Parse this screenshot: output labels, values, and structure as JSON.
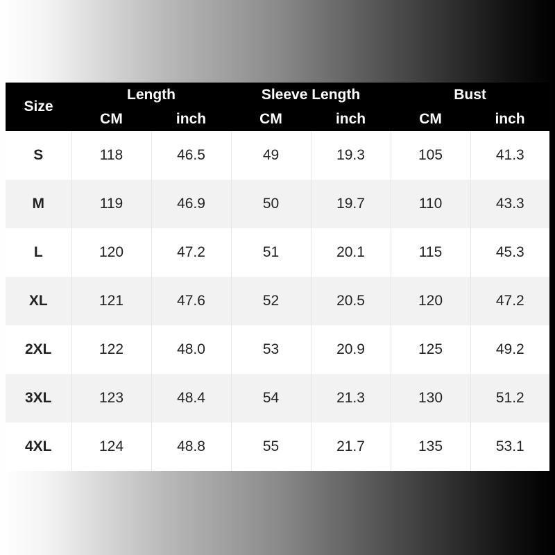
{
  "table": {
    "size_header": "Size",
    "groups": [
      "Length",
      "Sleeve Length",
      "Bust"
    ],
    "units": [
      "CM",
      "inch",
      "CM",
      "inch",
      "CM",
      "inch"
    ],
    "rows": [
      [
        "S",
        "118",
        "46.5",
        "49",
        "19.3",
        "105",
        "41.3"
      ],
      [
        "M",
        "119",
        "46.9",
        "50",
        "19.7",
        "110",
        "43.3"
      ],
      [
        "L",
        "120",
        "47.2",
        "51",
        "20.1",
        "115",
        "45.3"
      ],
      [
        "XL",
        "121",
        "47.6",
        "52",
        "20.5",
        "120",
        "47.2"
      ],
      [
        "2XL",
        "122",
        "48.0",
        "53",
        "20.9",
        "125",
        "49.2"
      ],
      [
        "3XL",
        "123",
        "48.4",
        "54",
        "21.3",
        "130",
        "51.2"
      ],
      [
        "4XL",
        "124",
        "48.8",
        "55",
        "21.7",
        "135",
        "53.1"
      ]
    ]
  }
}
